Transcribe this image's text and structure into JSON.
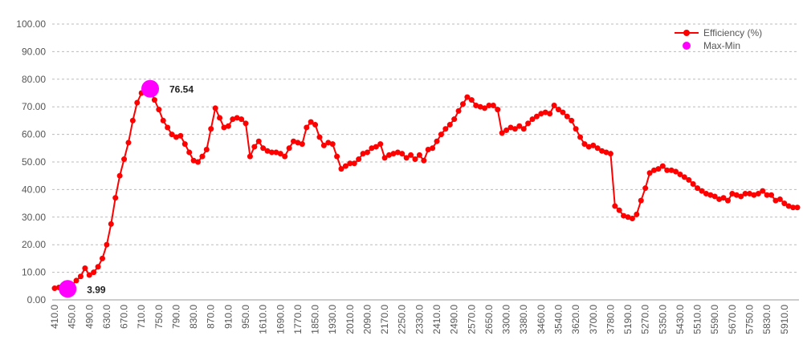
{
  "chart_data": {
    "type": "line",
    "categories": [
      "410.0",
      null,
      null,
      null,
      "450.0",
      null,
      null,
      null,
      "490.0",
      null,
      null,
      null,
      "630.0",
      null,
      null,
      null,
      "670.0",
      null,
      null,
      null,
      "710.0",
      null,
      null,
      null,
      "750.0",
      null,
      null,
      null,
      "790.0",
      null,
      null,
      null,
      "830.0",
      null,
      null,
      null,
      "870.0",
      null,
      null,
      null,
      "910.0",
      null,
      null,
      null,
      "950.0",
      null,
      null,
      null,
      "1610.0",
      null,
      null,
      null,
      "1690.0",
      null,
      null,
      null,
      "1770.0",
      null,
      null,
      null,
      "1850.0",
      null,
      null,
      null,
      "1930.0",
      null,
      null,
      null,
      "2010.0",
      null,
      null,
      null,
      "2090.0",
      null,
      null,
      null,
      "2170.0",
      null,
      null,
      null,
      "2250.0",
      null,
      null,
      null,
      "2330.0",
      null,
      null,
      null,
      "2410.0",
      null,
      null,
      null,
      "2490.0",
      null,
      null,
      null,
      "2570.0",
      null,
      null,
      null,
      "2650.0",
      null,
      null,
      null,
      "3300.0",
      null,
      null,
      null,
      "3380.0",
      null,
      null,
      null,
      "3460.0",
      null,
      null,
      null,
      "3540.0",
      null,
      null,
      null,
      "3620.0",
      null,
      null,
      null,
      "3700.0",
      null,
      null,
      null,
      "3780.0",
      null,
      null,
      null,
      "5190.0",
      null,
      null,
      null,
      "5270.0",
      null,
      null,
      null,
      "5350.0",
      null,
      null,
      null,
      "5430.0",
      null,
      null,
      null,
      "5510.0",
      null,
      null,
      null,
      "5590.0",
      null,
      null,
      null,
      "5670.0",
      null,
      null,
      null,
      "5750.0",
      null,
      null,
      null,
      "5830.0",
      null,
      null,
      null,
      "5910.0",
      null,
      null,
      null
    ],
    "series": [
      {
        "name": "Efficiency (%)",
        "color": "#ff0000",
        "values": [
          4.2,
          4.5,
          4.3,
          3.99,
          5.5,
          7,
          8.5,
          11.5,
          9,
          10,
          12,
          15,
          20,
          27.5,
          37,
          45,
          51,
          57,
          65,
          71.5,
          75,
          76,
          76.54,
          72.5,
          69,
          65,
          62.5,
          60,
          59,
          59.5,
          56.5,
          53.5,
          50.5,
          50,
          52,
          54.5,
          62,
          69.5,
          66,
          62.5,
          63,
          65.5,
          66,
          65.5,
          64,
          52,
          55.5,
          57.5,
          55,
          54,
          53.5,
          53.5,
          53,
          52,
          55,
          57.5,
          57,
          56.5,
          62.5,
          64.5,
          63.5,
          59,
          56,
          57,
          56.5,
          52,
          47.5,
          48.5,
          49.5,
          49.5,
          51,
          53,
          53.5,
          55,
          55.5,
          56.5,
          51.5,
          52.5,
          53,
          53.5,
          53,
          51.5,
          52.5,
          51,
          52.5,
          50.5,
          54.5,
          55,
          57.5,
          60,
          62,
          63.5,
          65.5,
          68.5,
          71,
          73.5,
          72.5,
          70.5,
          70,
          69.5,
          70.5,
          70.5,
          69,
          60.5,
          61.5,
          62.5,
          62,
          63,
          62,
          64,
          65.5,
          66.5,
          67.5,
          68,
          67.5,
          70.5,
          69,
          68,
          66.5,
          65,
          62,
          59,
          56.5,
          55.5,
          56,
          55,
          54,
          53.5,
          53,
          34,
          32.5,
          30.5,
          30,
          29.5,
          31,
          36,
          40.5,
          46,
          47,
          47.5,
          48.5,
          47,
          47,
          46.5,
          45.5,
          44.5,
          43.5,
          42,
          40.5,
          39.5,
          38.5,
          38,
          37.5,
          36.5,
          37,
          36,
          38.5,
          38,
          37.5,
          38.5,
          38.5,
          38,
          38.5,
          39.5,
          38,
          38,
          36,
          36.5,
          35,
          34,
          33.5,
          33.5
        ]
      },
      {
        "name": "Max-Min",
        "color": "#ff00ff",
        "values": [
          null,
          null,
          null,
          3.99,
          null,
          null,
          null,
          null,
          null,
          null,
          null,
          null,
          null,
          null,
          null,
          null,
          null,
          null,
          null,
          null,
          null,
          null,
          76.54,
          null,
          null,
          null,
          null,
          null,
          null,
          null,
          null,
          null,
          null,
          null,
          null,
          null,
          null,
          null,
          null,
          null,
          null,
          null,
          null,
          null,
          null,
          null,
          null,
          null,
          null,
          null,
          null,
          null,
          null,
          null,
          null,
          null,
          null,
          null,
          null,
          null,
          null,
          null,
          null,
          null,
          null,
          null,
          null,
          null,
          null,
          null,
          null,
          null,
          null,
          null,
          null,
          null,
          null,
          null,
          null,
          null,
          null,
          null,
          null,
          null,
          null,
          null,
          null,
          null,
          null,
          null,
          null,
          null,
          null,
          null,
          null,
          null,
          null,
          null,
          null,
          null,
          null,
          null,
          null,
          null,
          null,
          null,
          null,
          null,
          null,
          null,
          null,
          null,
          null,
          null,
          null,
          null,
          null,
          null,
          null,
          null,
          null,
          null,
          null,
          null,
          null,
          null,
          null,
          null,
          null,
          null,
          null,
          null,
          null,
          null,
          null,
          null,
          null,
          null,
          null,
          null,
          null,
          null,
          null,
          null,
          null,
          null,
          null,
          null,
          null,
          null,
          null,
          null,
          null,
          null,
          null,
          null,
          null,
          null,
          null,
          null,
          null,
          null,
          null,
          null,
          null,
          null,
          null,
          null,
          null,
          null,
          null,
          null
        ]
      }
    ],
    "ylim": [
      0,
      100
    ],
    "yticks": [
      {
        "value": 0,
        "label": "0.00"
      },
      {
        "value": 10,
        "label": "10.00"
      },
      {
        "value": 20,
        "label": "20.00"
      },
      {
        "value": 30,
        "label": "30.00"
      },
      {
        "value": 40,
        "label": "40.00"
      },
      {
        "value": 50,
        "label": "50.00"
      },
      {
        "value": 60,
        "label": "60.00"
      },
      {
        "value": 70,
        "label": "70.00"
      },
      {
        "value": 80,
        "label": "80.00"
      },
      {
        "value": 90,
        "label": "90.00"
      },
      {
        "value": 100,
        "label": "100.00"
      }
    ],
    "grid": true,
    "legend": "top-right"
  }
}
